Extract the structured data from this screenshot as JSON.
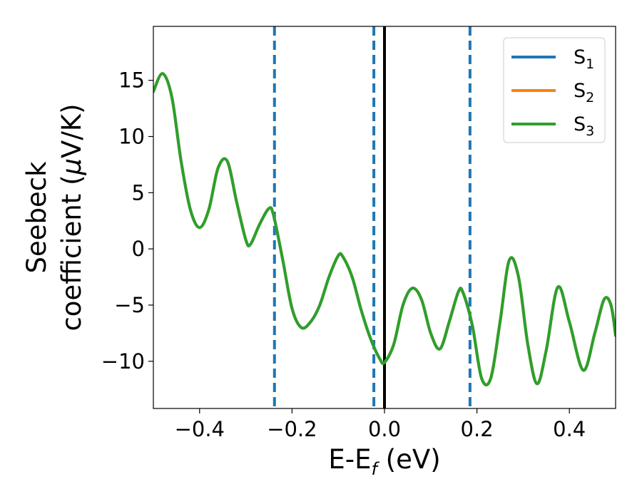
{
  "chart_data": {
    "type": "line",
    "xlabel_main": "E-E",
    "xlabel_sub": "f",
    "xlabel_unit": " (eV)",
    "ylabel_line1": "Seebeck",
    "ylabel_line2_text": "coefficient  (",
    "ylabel_mu": "μ",
    "ylabel_tail": "V/K)",
    "xlim": [
      -0.5,
      0.5
    ],
    "ylim": [
      -14.2,
      19.8
    ],
    "x_ticks": [
      -0.4,
      -0.2,
      0.0,
      0.2,
      0.4
    ],
    "x_tick_labels": [
      "−0.4",
      "−0.2",
      "0.0",
      "0.2",
      "0.4"
    ],
    "y_ticks": [
      -10,
      -5,
      0,
      5,
      10,
      15
    ],
    "y_tick_labels": [
      "−10",
      "−5",
      "0",
      "5",
      "10",
      "15"
    ],
    "legend_position": "top-right",
    "series": [
      {
        "name": "S",
        "sub": "1",
        "color": "#1f77b4"
      },
      {
        "name": "S",
        "sub": "2",
        "color": "#ff7f0e"
      },
      {
        "name": "S",
        "sub": "3",
        "color": "#2ca02c"
      }
    ],
    "x": [
      -0.5,
      -0.48,
      -0.46,
      -0.44,
      -0.42,
      -0.4,
      -0.38,
      -0.36,
      -0.34,
      -0.32,
      -0.3,
      -0.29,
      -0.27,
      -0.25,
      -0.24,
      -0.22,
      -0.2,
      -0.18,
      -0.16,
      -0.14,
      -0.12,
      -0.1,
      -0.09,
      -0.07,
      -0.05,
      -0.03,
      -0.01,
      0.0,
      0.02,
      0.04,
      0.06,
      0.08,
      0.1,
      0.12,
      0.14,
      0.16,
      0.17,
      0.19,
      0.21,
      0.23,
      0.25,
      0.27,
      0.29,
      0.31,
      0.33,
      0.35,
      0.375,
      0.4,
      0.43,
      0.455,
      0.475,
      0.49,
      0.5
    ],
    "y": [
      14.0,
      15.6,
      13.5,
      7.8,
      3.5,
      1.9,
      3.5,
      7.2,
      7.8,
      4.2,
      0.8,
      0.4,
      2.2,
      3.6,
      3.0,
      -1.0,
      -5.3,
      -7.0,
      -6.5,
      -5.0,
      -2.5,
      -0.6,
      -0.7,
      -2.5,
      -5.5,
      -8.0,
      -9.8,
      -10.1,
      -8.5,
      -5.0,
      -3.5,
      -4.5,
      -7.5,
      -8.9,
      -6.5,
      -3.8,
      -3.9,
      -6.8,
      -11.5,
      -11.5,
      -6.5,
      -1.0,
      -2.5,
      -8.5,
      -12.0,
      -9.0,
      -3.4,
      -6.5,
      -10.8,
      -7.5,
      -4.5,
      -5.0,
      -7.7
    ],
    "highlight_series_index": 2,
    "vlines": [
      {
        "x": -0.238,
        "style": "dashed",
        "color": "#1f77b4"
      },
      {
        "x": -0.023,
        "style": "dashed",
        "color": "#1f77b4"
      },
      {
        "x": 0.0,
        "style": "solid",
        "color": "#000000"
      },
      {
        "x": 0.185,
        "style": "dashed",
        "color": "#1f77b4"
      }
    ]
  }
}
